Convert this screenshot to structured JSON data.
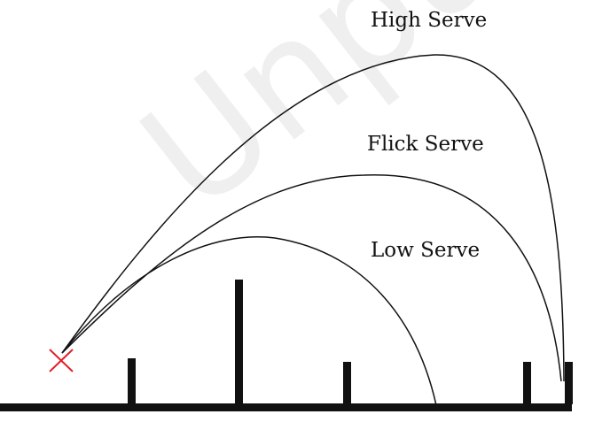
{
  "labels": {
    "high_serve": "High Serve",
    "flick_serve": "Flick Serve",
    "low_serve": "Low Serve"
  },
  "watermark": "Unpublished",
  "colors": {
    "curve": "#111111",
    "court": "#111111",
    "marker": "#e1202b",
    "watermark": "#efefef"
  }
}
